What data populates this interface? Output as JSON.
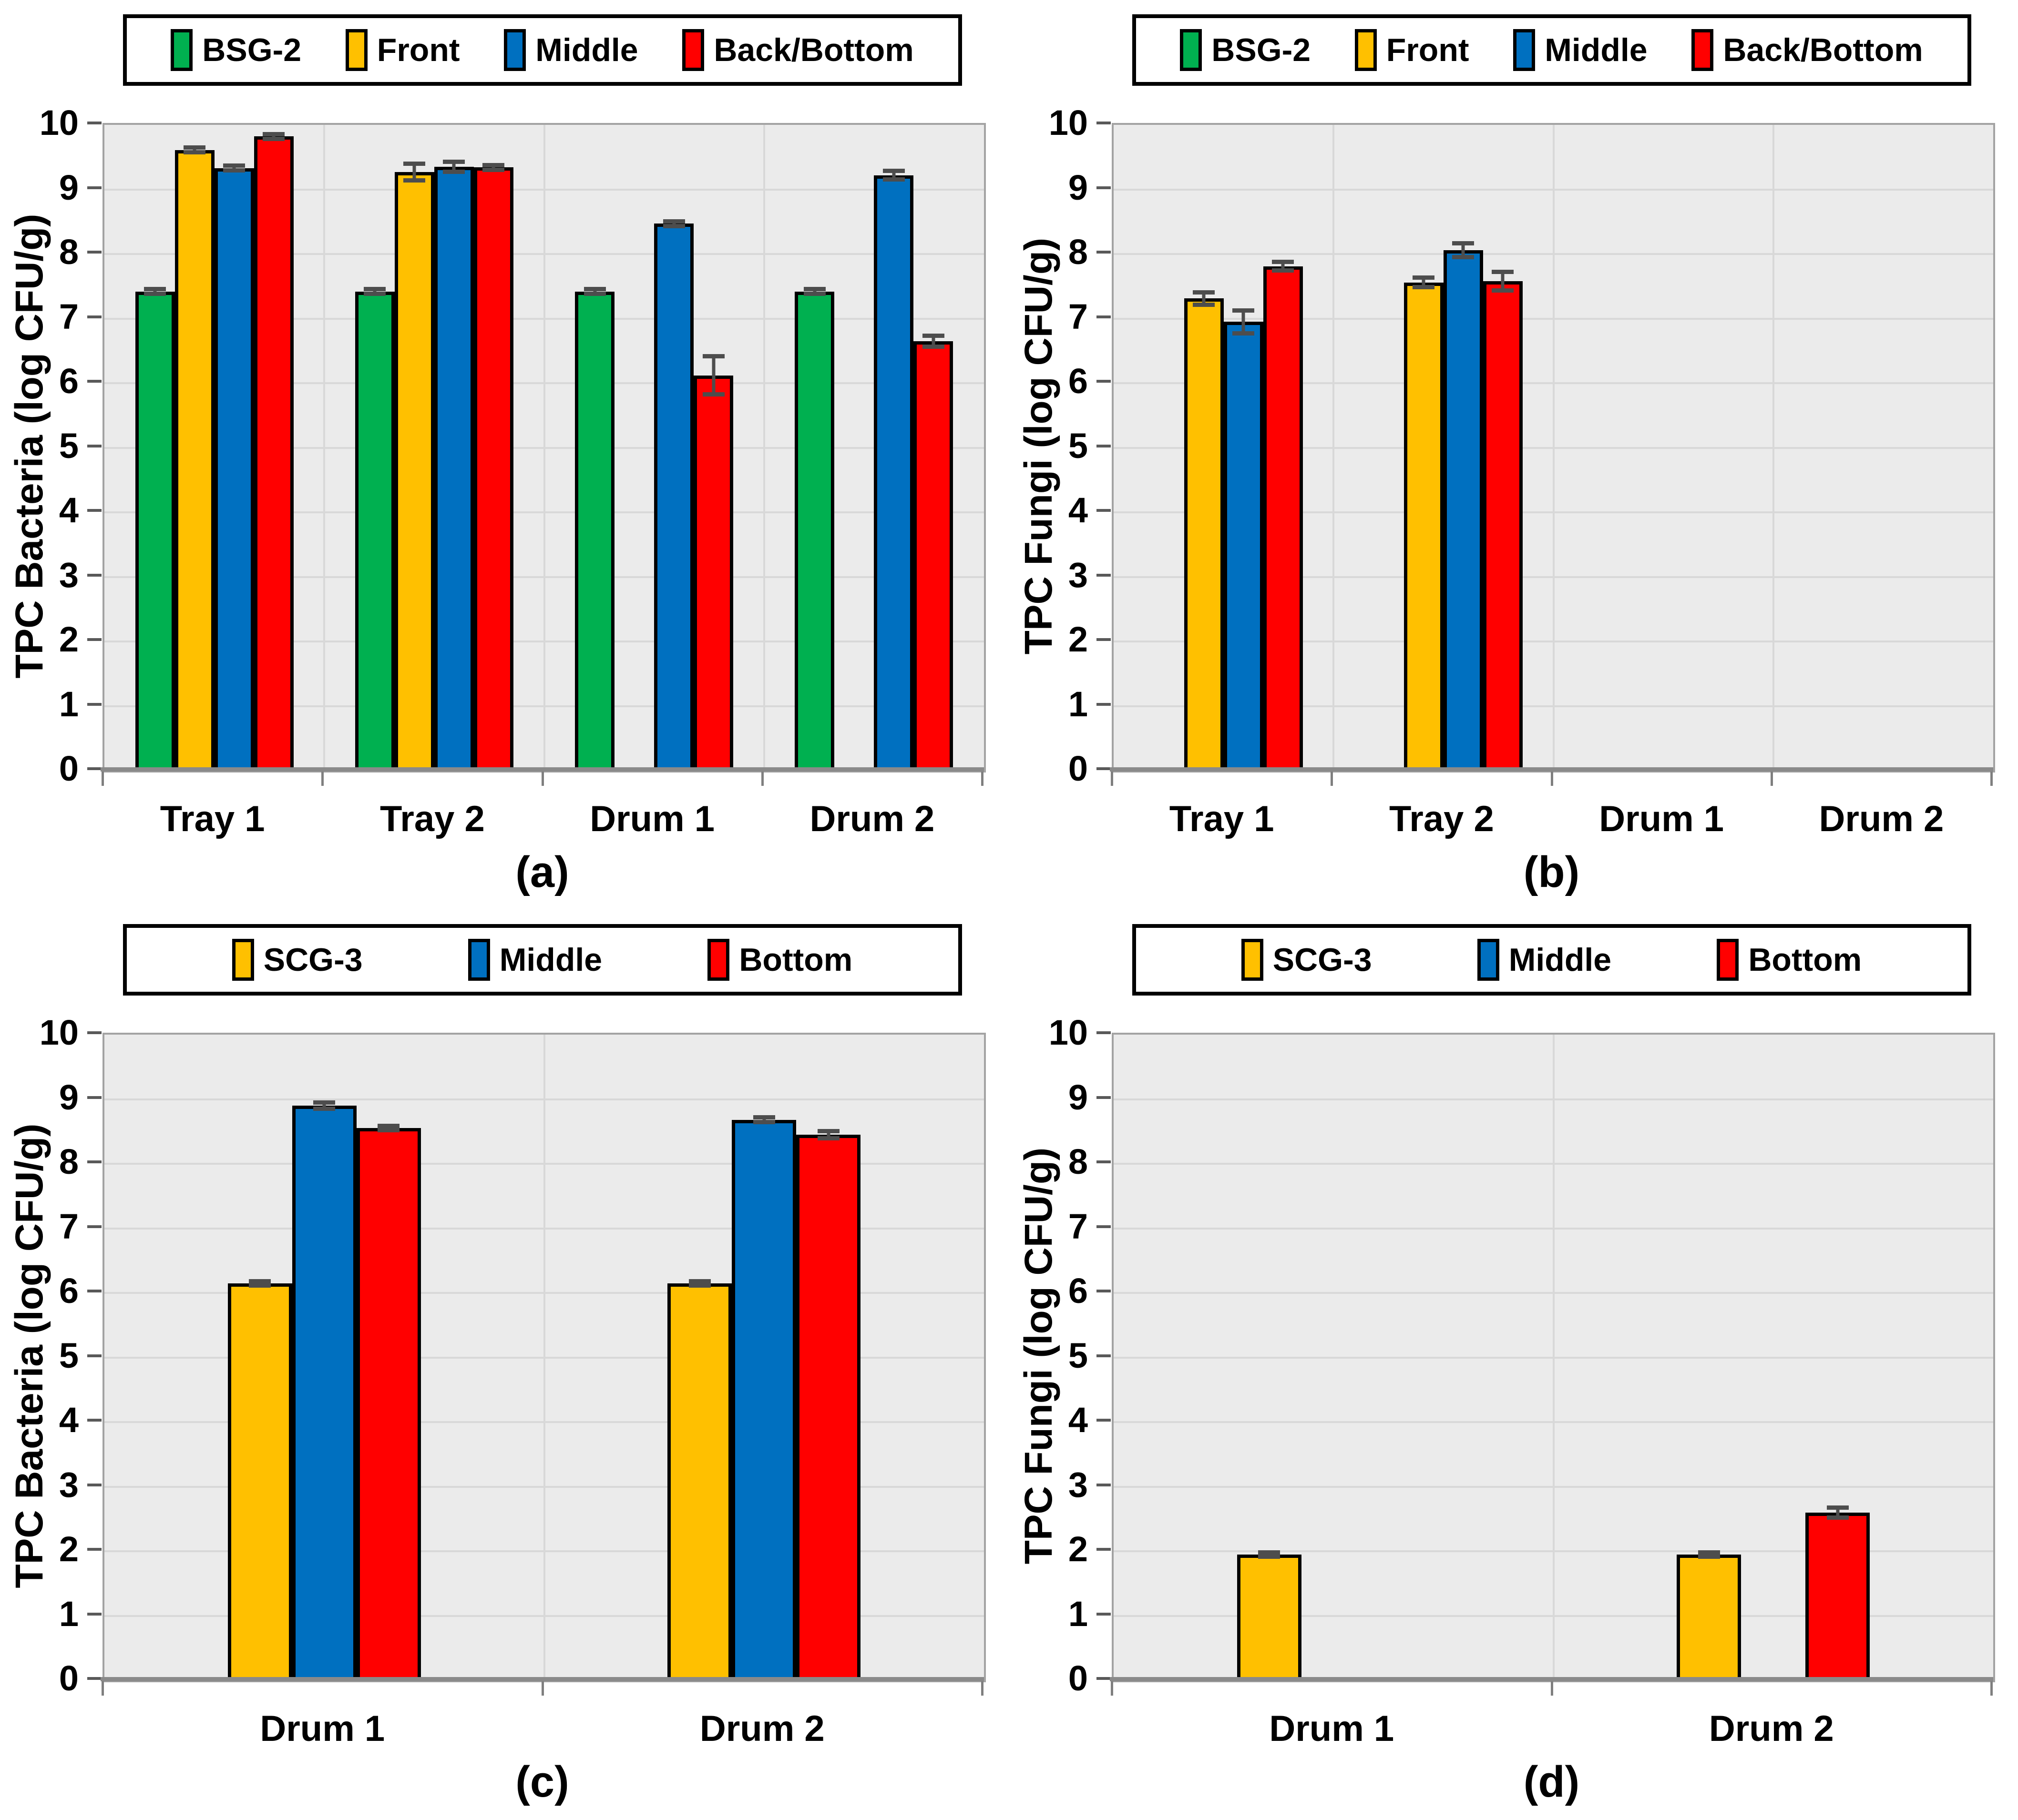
{
  "figure": {
    "background": "#ffffff",
    "error_bar_color": "#4d4d4d",
    "plot_background": "#ebebeb",
    "gridline_color": "#d8d8d8",
    "series_colors": {
      "BSG-2": "#00B050",
      "SCG-3": "#FFC000",
      "Front": "#FFC000",
      "Middle": "#0070C0",
      "Back/Bottom": "#FF0000",
      "Bottom": "#FF0000"
    }
  },
  "chart_data": [
    {
      "id": "a",
      "type": "bar",
      "caption": "(a)",
      "ylabel": "TPC Bacteria (log CFU/g)",
      "ylim": [
        0,
        10
      ],
      "ytick_step": 1,
      "grid": true,
      "legend_position": "top",
      "categories": [
        "Tray 1",
        "Tray 2",
        "Drum 1",
        "Drum 2"
      ],
      "series": [
        {
          "name": "BSG-2",
          "color": "#00B050",
          "values": [
            7.42,
            7.42,
            7.42,
            7.42
          ],
          "errors": [
            0.04,
            0.04,
            0.04,
            0.04
          ]
        },
        {
          "name": "Front",
          "color": "#FFC000",
          "values": [
            9.61,
            9.27,
            null,
            null
          ],
          "errors": [
            0.04,
            0.13,
            null,
            null
          ]
        },
        {
          "name": "Middle",
          "color": "#0070C0",
          "values": [
            9.33,
            9.35,
            8.47,
            9.22
          ],
          "errors": [
            0.04,
            0.08,
            0.04,
            0.07
          ]
        },
        {
          "name": "Back/Bottom",
          "color": "#FF0000",
          "values": [
            9.82,
            9.34,
            6.12,
            6.65
          ],
          "errors": [
            0.04,
            0.04,
            0.3,
            0.09
          ]
        }
      ]
    },
    {
      "id": "b",
      "type": "bar",
      "caption": "(b)",
      "ylabel": "TPC Fungi (log CFU/g)",
      "ylim": [
        0,
        10
      ],
      "ytick_step": 1,
      "grid": true,
      "legend_position": "top",
      "categories": [
        "Tray 1",
        "Tray 2",
        "Drum 1",
        "Drum 2"
      ],
      "series": [
        {
          "name": "BSG-2",
          "color": "#00B050",
          "values": [
            null,
            null,
            null,
            null
          ],
          "errors": [
            null,
            null,
            null,
            null
          ]
        },
        {
          "name": "Front",
          "color": "#FFC000",
          "values": [
            7.31,
            7.56,
            null,
            null
          ],
          "errors": [
            0.1,
            0.08,
            null,
            null
          ]
        },
        {
          "name": "Middle",
          "color": "#0070C0",
          "values": [
            6.95,
            8.06,
            null,
            null
          ],
          "errors": [
            0.18,
            0.11,
            null,
            null
          ]
        },
        {
          "name": "Back/Bottom",
          "color": "#FF0000",
          "values": [
            7.81,
            7.58,
            null,
            null
          ],
          "errors": [
            0.07,
            0.15,
            null,
            null
          ]
        }
      ]
    },
    {
      "id": "c",
      "type": "bar",
      "caption": "(c)",
      "ylabel": "TPC Bacteria (log CFU/g)",
      "ylim": [
        0,
        10
      ],
      "ytick_step": 1,
      "grid": true,
      "legend_position": "top",
      "categories": [
        "Drum 1",
        "Drum 2"
      ],
      "series": [
        {
          "name": "SCG-3",
          "color": "#FFC000",
          "values": [
            6.15,
            6.15
          ],
          "errors": [
            0.03,
            0.03
          ]
        },
        {
          "name": "Middle",
          "color": "#0070C0",
          "values": [
            8.9,
            8.68
          ],
          "errors": [
            0.05,
            0.04
          ]
        },
        {
          "name": "Bottom",
          "color": "#FF0000",
          "values": [
            8.55,
            8.45
          ],
          "errors": [
            0.03,
            0.06
          ]
        }
      ]
    },
    {
      "id": "d",
      "type": "bar",
      "caption": "(d)",
      "ylabel": "TPC Fungi (log CFU/g)",
      "ylim": [
        0,
        10
      ],
      "ytick_step": 1,
      "grid": true,
      "legend_position": "top",
      "categories": [
        "Drum 1",
        "Drum 2"
      ],
      "series": [
        {
          "name": "SCG-3",
          "color": "#FFC000",
          "values": [
            1.95,
            1.95
          ],
          "errors": [
            0.03,
            0.03
          ]
        },
        {
          "name": "Middle",
          "color": "#0070C0",
          "values": [
            null,
            null
          ],
          "errors": [
            null,
            null
          ]
        },
        {
          "name": "Bottom",
          "color": "#FF0000",
          "values": [
            null,
            2.6
          ],
          "errors": [
            null,
            0.08
          ]
        }
      ]
    }
  ]
}
